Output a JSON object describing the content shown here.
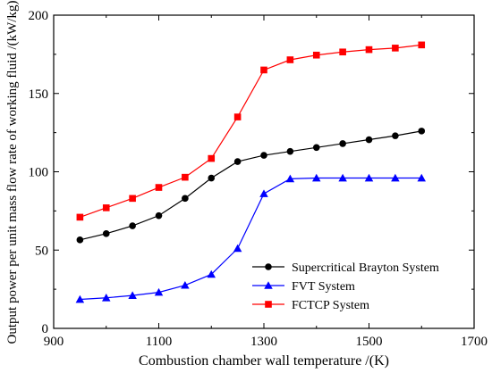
{
  "chart_data": {
    "type": "line",
    "xlabel": "Combustion chamber wall temperature /(K)",
    "ylabel": "Output power per unit mass flow rate of working fluid /(kW/kg)",
    "xlim": [
      900,
      1700
    ],
    "ylim": [
      0,
      200
    ],
    "xticks": [
      900,
      1100,
      1300,
      1500,
      1700
    ],
    "yticks": [
      0,
      50,
      100,
      150,
      200
    ],
    "x": [
      950,
      1000,
      1050,
      1100,
      1150,
      1200,
      1250,
      1300,
      1350,
      1400,
      1450,
      1500,
      1550,
      1600
    ],
    "legend_position": "bottom-right",
    "grid": false,
    "series": [
      {
        "name": "Supercritical Brayton System",
        "color": "#000000",
        "marker": "circle",
        "values": [
          56.5,
          60.5,
          65.5,
          72,
          83,
          96,
          106.5,
          110.5,
          113,
          115.5,
          118,
          120.5,
          123,
          126
        ]
      },
      {
        "name": "FVT System",
        "color": "#0000ff",
        "marker": "triangle",
        "values": [
          18.5,
          19.5,
          21,
          23,
          27.5,
          34.5,
          51,
          86,
          95.5,
          96,
          96,
          96,
          96,
          96
        ]
      },
      {
        "name": "FCTCP System",
        "color": "#ff0000",
        "marker": "square",
        "values": [
          71,
          77,
          83,
          90,
          96.5,
          108.5,
          135,
          165,
          171.5,
          174.5,
          176.5,
          178,
          179,
          181
        ]
      }
    ]
  }
}
